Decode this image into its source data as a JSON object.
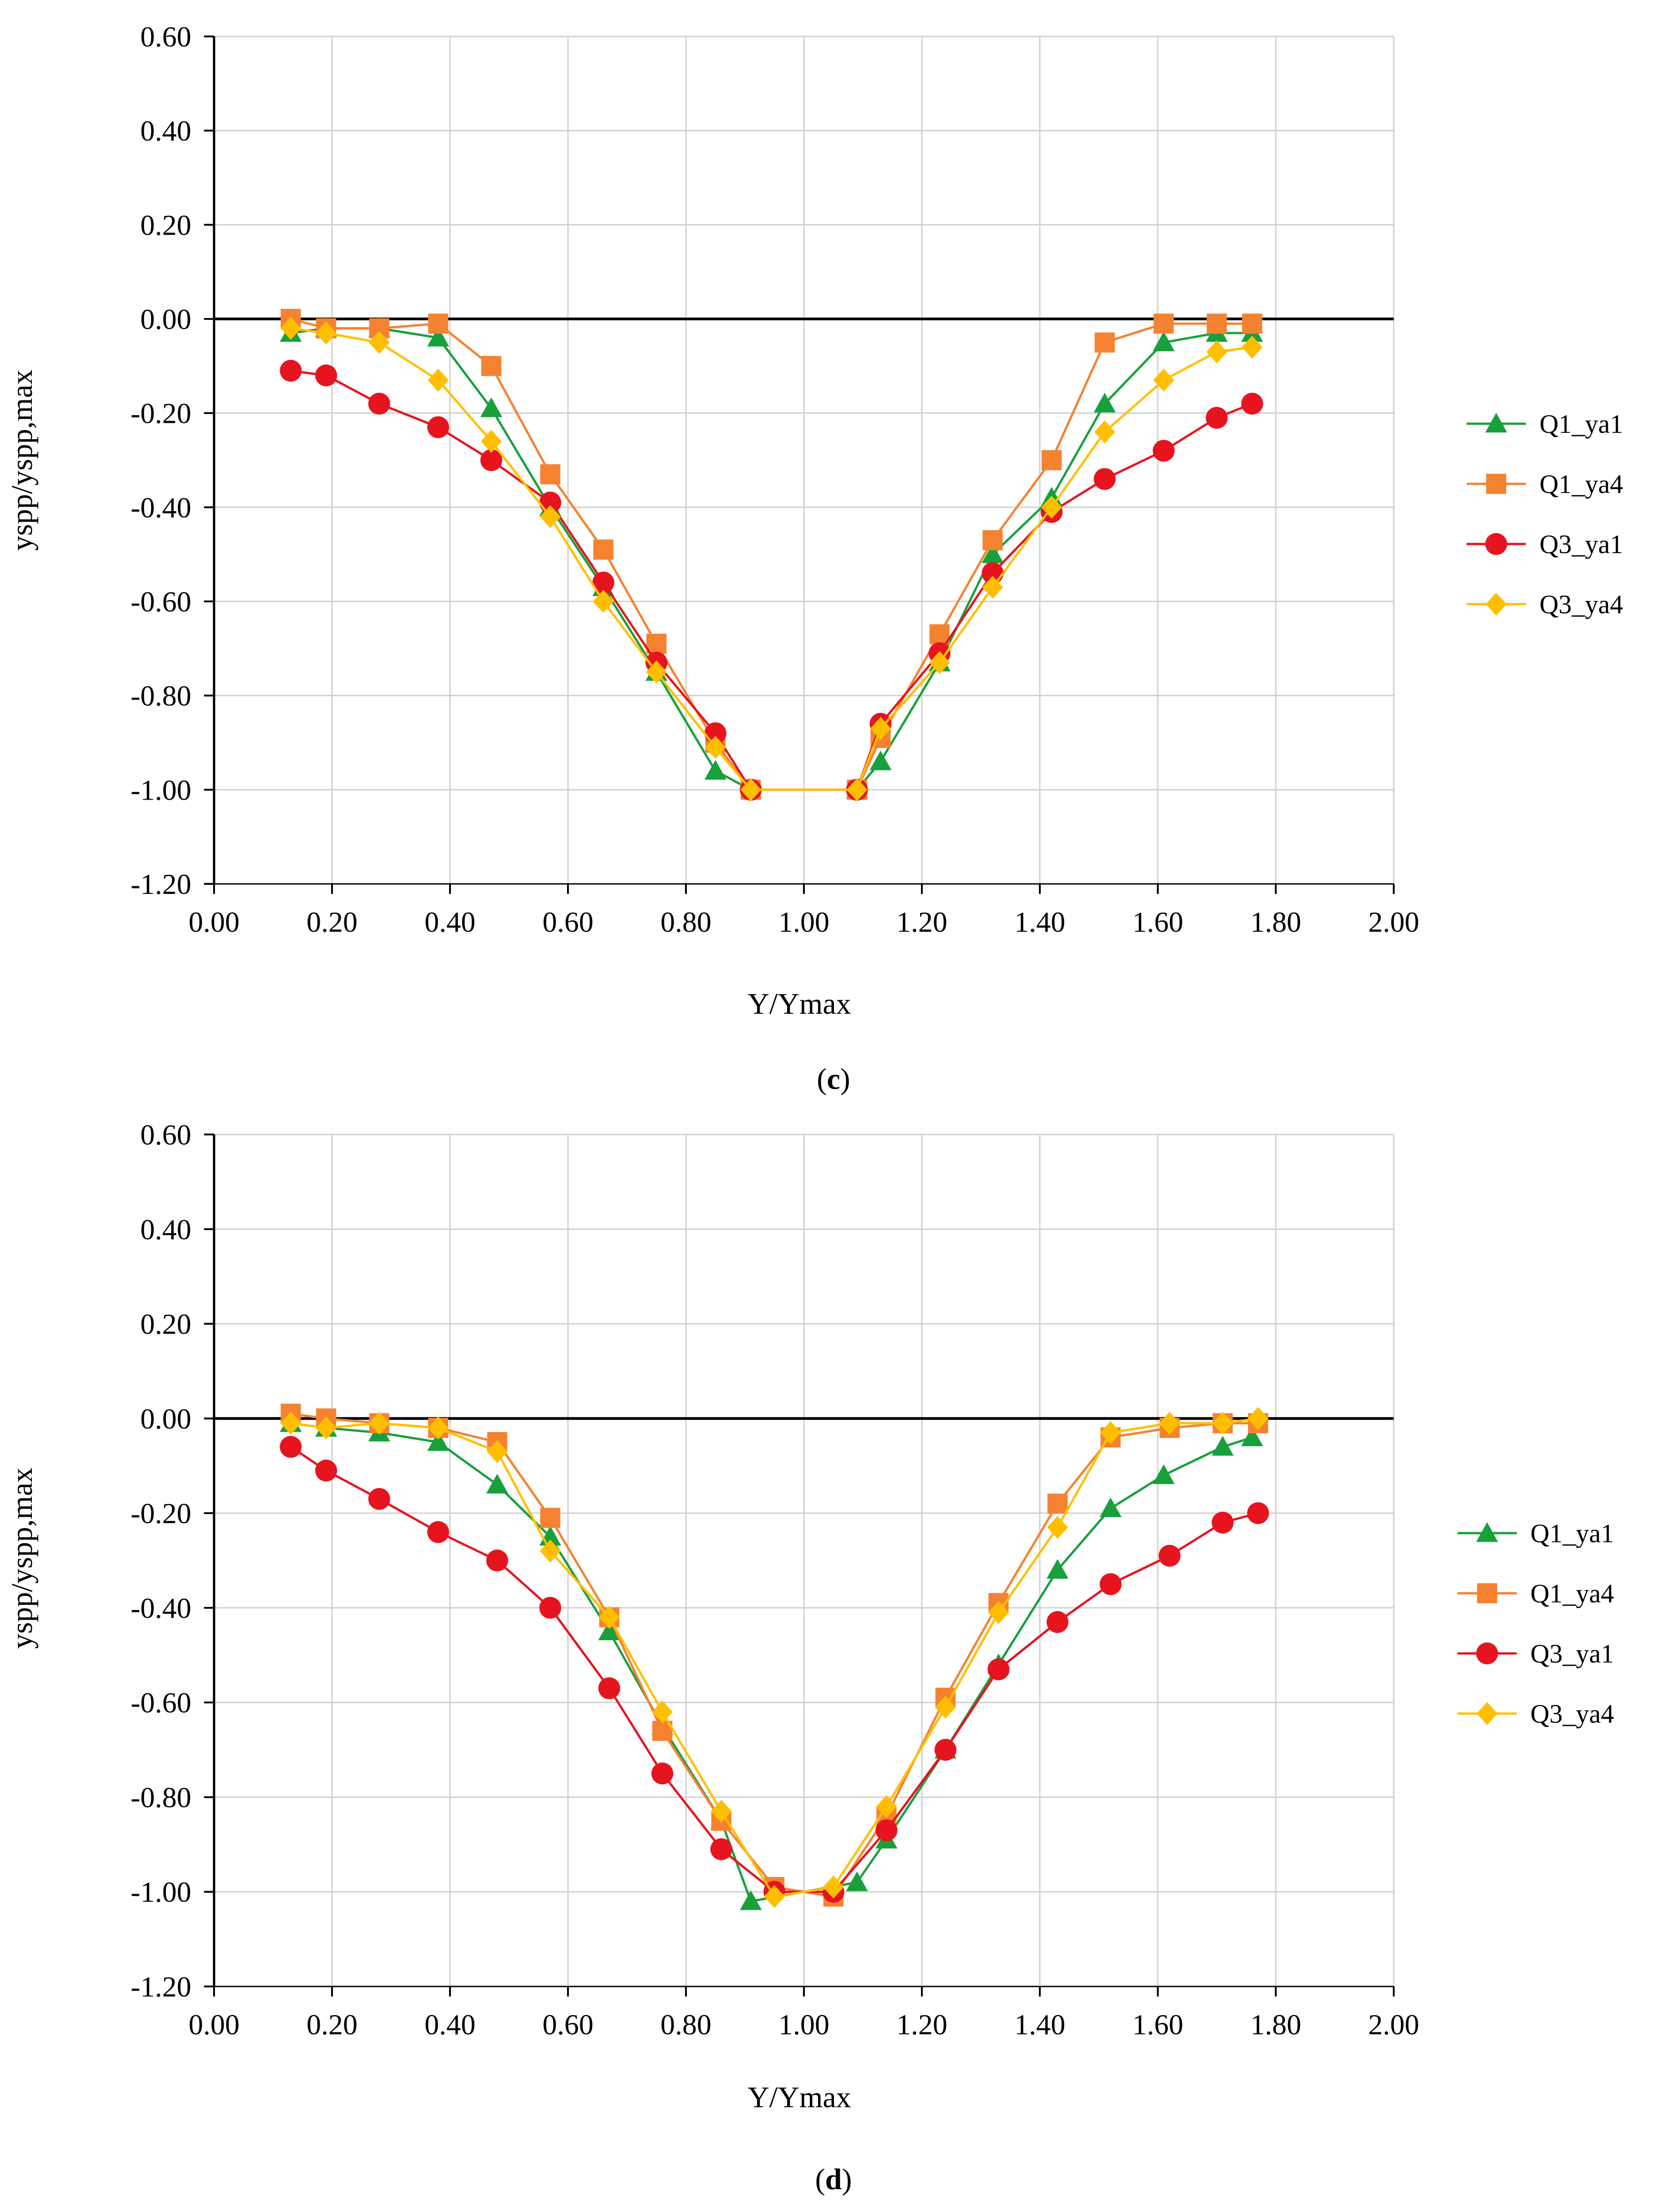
{
  "chart_data": [
    {
      "type": "line",
      "panel_label": {
        "open": "(",
        "letter": "c",
        "close": ")"
      },
      "xlabel": "Y/Ymax",
      "ylabel": "yspp/yspp,max",
      "xlim": [
        0,
        2
      ],
      "ylim": [
        -1.2,
        0.6
      ],
      "x_ticks": [
        "0.00",
        "0.20",
        "0.40",
        "0.60",
        "0.80",
        "1.00",
        "1.20",
        "1.40",
        "1.60",
        "1.80",
        "2.00"
      ],
      "y_ticks": [
        "0.60",
        "0.40",
        "0.20",
        "0.00",
        "-0.20",
        "-0.40",
        "-0.60",
        "-0.80",
        "-1.00",
        "-1.20"
      ],
      "grid": true,
      "legend_position": "right",
      "series": [
        {
          "name": "Q1_ya1",
          "color": "#17a03c",
          "marker": "triangle",
          "x": [
            0.13,
            0.19,
            0.28,
            0.38,
            0.47,
            0.57,
            0.66,
            0.75,
            0.85,
            0.91,
            1.09,
            1.13,
            1.23,
            1.32,
            1.42,
            1.51,
            1.61,
            1.7,
            1.76
          ],
          "y": [
            -0.03,
            -0.02,
            -0.02,
            -0.04,
            -0.19,
            -0.4,
            -0.57,
            -0.75,
            -0.96,
            -1.0,
            -1.0,
            -0.94,
            -0.73,
            -0.5,
            -0.38,
            -0.18,
            -0.05,
            -0.03,
            -0.03
          ]
        },
        {
          "name": "Q1_ya4",
          "color": "#f58231",
          "marker": "square",
          "x": [
            0.13,
            0.19,
            0.28,
            0.38,
            0.47,
            0.57,
            0.66,
            0.75,
            0.85,
            0.91,
            1.09,
            1.13,
            1.23,
            1.32,
            1.42,
            1.51,
            1.61,
            1.7,
            1.76
          ],
          "y": [
            0.0,
            -0.02,
            -0.02,
            -0.01,
            -0.1,
            -0.33,
            -0.49,
            -0.69,
            -0.9,
            -1.0,
            -1.0,
            -0.89,
            -0.67,
            -0.47,
            -0.3,
            -0.05,
            -0.01,
            -0.01,
            -0.01
          ]
        },
        {
          "name": "Q3_ya1",
          "color": "#e6141e",
          "marker": "circle",
          "x": [
            0.13,
            0.19,
            0.28,
            0.38,
            0.47,
            0.57,
            0.66,
            0.75,
            0.85,
            0.91,
            1.09,
            1.13,
            1.23,
            1.32,
            1.42,
            1.51,
            1.61,
            1.7,
            1.76
          ],
          "y": [
            -0.11,
            -0.12,
            -0.18,
            -0.23,
            -0.3,
            -0.39,
            -0.56,
            -0.73,
            -0.88,
            -1.0,
            -1.0,
            -0.86,
            -0.71,
            -0.54,
            -0.41,
            -0.34,
            -0.28,
            -0.21,
            -0.18
          ]
        },
        {
          "name": "Q3_ya4",
          "color": "#ffbf00",
          "marker": "diamond",
          "x": [
            0.13,
            0.19,
            0.28,
            0.38,
            0.47,
            0.57,
            0.66,
            0.75,
            0.85,
            0.91,
            1.09,
            1.13,
            1.23,
            1.32,
            1.42,
            1.51,
            1.61,
            1.7,
            1.76
          ],
          "y": [
            -0.02,
            -0.03,
            -0.05,
            -0.13,
            -0.26,
            -0.42,
            -0.6,
            -0.75,
            -0.91,
            -1.0,
            -1.0,
            -0.87,
            -0.73,
            -0.57,
            -0.4,
            -0.24,
            -0.13,
            -0.07,
            -0.06
          ]
        }
      ]
    },
    {
      "type": "line",
      "panel_label": {
        "open": "(",
        "letter": "d",
        "close": ")"
      },
      "xlabel": "Y/Ymax",
      "ylabel": "yspp/yspp,max",
      "xlim": [
        0,
        2
      ],
      "ylim": [
        -1.2,
        0.6
      ],
      "x_ticks": [
        "0.00",
        "0.20",
        "0.40",
        "0.60",
        "0.80",
        "1.00",
        "1.20",
        "1.40",
        "1.60",
        "1.80",
        "2.00"
      ],
      "y_ticks": [
        "0.60",
        "0.40",
        "0.20",
        "0.00",
        "-0.20",
        "-0.40",
        "-0.60",
        "-0.80",
        "-1.00",
        "-1.20"
      ],
      "grid": true,
      "legend_position": "right",
      "series": [
        {
          "name": "Q1_ya1",
          "color": "#17a03c",
          "marker": "triangle",
          "x": [
            0.13,
            0.19,
            0.28,
            0.38,
            0.48,
            0.57,
            0.67,
            0.76,
            0.86,
            0.91,
            1.09,
            1.14,
            1.24,
            1.33,
            1.43,
            1.52,
            1.61,
            1.71,
            1.76
          ],
          "y": [
            -0.01,
            -0.02,
            -0.03,
            -0.05,
            -0.14,
            -0.25,
            -0.45,
            -0.65,
            -0.85,
            -1.02,
            -0.98,
            -0.89,
            -0.7,
            -0.52,
            -0.32,
            -0.19,
            -0.12,
            -0.06,
            -0.04
          ]
        },
        {
          "name": "Q1_ya4",
          "color": "#f58231",
          "marker": "square",
          "x": [
            0.13,
            0.19,
            0.28,
            0.38,
            0.48,
            0.57,
            0.67,
            0.76,
            0.86,
            0.95,
            1.05,
            1.14,
            1.24,
            1.33,
            1.43,
            1.52,
            1.62,
            1.71,
            1.77
          ],
          "y": [
            0.01,
            0.0,
            -0.01,
            -0.02,
            -0.05,
            -0.21,
            -0.42,
            -0.66,
            -0.85,
            -0.99,
            -1.01,
            -0.84,
            -0.59,
            -0.39,
            -0.18,
            -0.04,
            -0.02,
            -0.01,
            -0.01
          ]
        },
        {
          "name": "Q3_ya1",
          "color": "#e6141e",
          "marker": "circle",
          "x": [
            0.13,
            0.19,
            0.28,
            0.38,
            0.48,
            0.57,
            0.67,
            0.76,
            0.86,
            0.95,
            1.05,
            1.14,
            1.24,
            1.33,
            1.43,
            1.52,
            1.62,
            1.71,
            1.77
          ],
          "y": [
            -0.06,
            -0.11,
            -0.17,
            -0.24,
            -0.3,
            -0.4,
            -0.57,
            -0.75,
            -0.91,
            -1.0,
            -1.0,
            -0.87,
            -0.7,
            -0.53,
            -0.43,
            -0.35,
            -0.29,
            -0.22,
            -0.2
          ]
        },
        {
          "name": "Q3_ya4",
          "color": "#ffbf00",
          "marker": "diamond",
          "x": [
            0.13,
            0.19,
            0.28,
            0.38,
            0.48,
            0.57,
            0.67,
            0.76,
            0.86,
            0.95,
            1.05,
            1.14,
            1.24,
            1.33,
            1.43,
            1.52,
            1.62,
            1.71,
            1.77
          ],
          "y": [
            -0.01,
            -0.02,
            -0.01,
            -0.02,
            -0.07,
            -0.28,
            -0.42,
            -0.62,
            -0.83,
            -1.01,
            -0.99,
            -0.82,
            -0.61,
            -0.41,
            -0.23,
            -0.03,
            -0.01,
            -0.01,
            0.0
          ]
        }
      ]
    }
  ]
}
